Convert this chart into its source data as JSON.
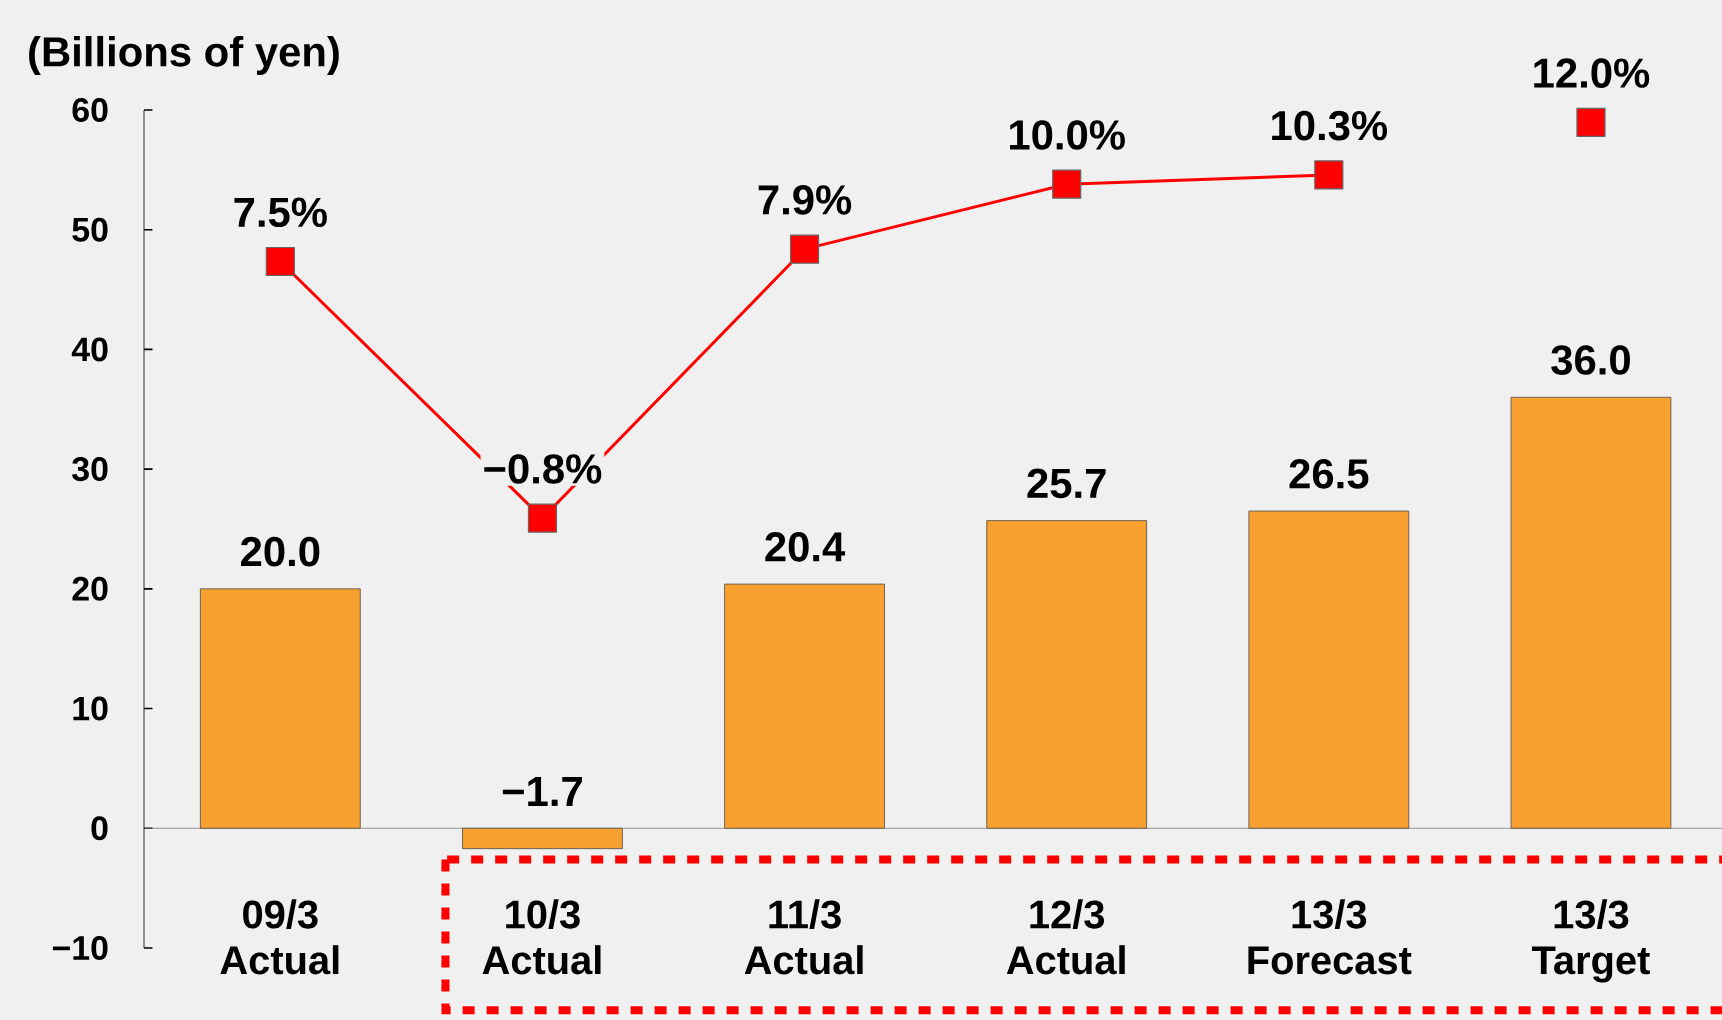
{
  "chart_data": {
    "type": "bar",
    "ylabel": "(Billions of yen)",
    "categories": [
      "09/3 Actual",
      "10/3 Actual",
      "11/3 Actual",
      "12/3 Actual",
      "13/3 Forecast",
      "13/3 Target"
    ],
    "series": [
      {
        "color": "#f8a030",
        "values": [
          20.0,
          -1.7,
          20.4,
          25.7,
          26.5,
          36.0
        ],
        "value_labels": [
          "20.0",
          "−1.7",
          "20.4",
          "25.7",
          "26.5",
          "36.0"
        ]
      },
      {
        "type": "line",
        "axis": "y2",
        "color": "#ff0000",
        "marker": "square",
        "values": [
          7.5,
          -0.8,
          7.9,
          10.0,
          10.3,
          null
        ],
        "value_labels": [
          "7.5%",
          "−0.8%",
          "7.9%",
          "10.0%",
          "10.3%",
          null
        ]
      },
      {
        "type": "scatter",
        "axis": "y2",
        "color": "#ff0000",
        "marker": "square",
        "values": [
          null,
          null,
          null,
          null,
          null,
          12.0
        ],
        "value_labels": [
          null,
          null,
          null,
          null,
          null,
          "12.0%"
        ]
      }
    ],
    "ylim": [
      -10,
      60
    ],
    "yticks": [
      {
        "value": -10,
        "label": "−10"
      },
      0,
      10,
      20,
      30,
      40,
      50,
      60
    ],
    "y2lim": [
      -14.7,
      12.4
    ],
    "grid": false
  }
}
